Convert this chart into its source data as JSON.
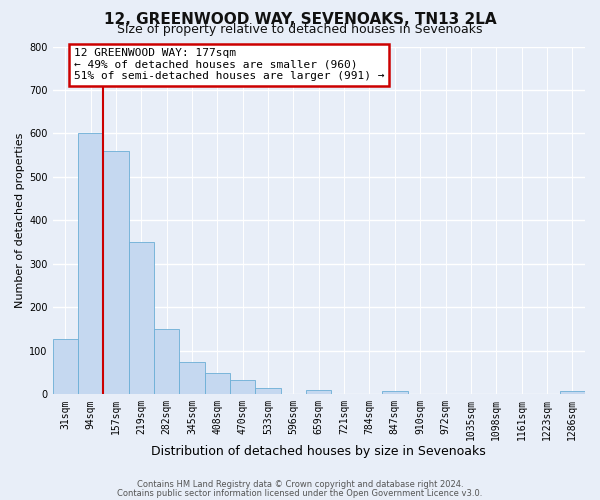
{
  "title": "12, GREENWOOD WAY, SEVENOAKS, TN13 2LA",
  "subtitle": "Size of property relative to detached houses in Sevenoaks",
  "xlabel": "Distribution of detached houses by size in Sevenoaks",
  "ylabel": "Number of detached properties",
  "bar_labels": [
    "31sqm",
    "94sqm",
    "157sqm",
    "219sqm",
    "282sqm",
    "345sqm",
    "408sqm",
    "470sqm",
    "533sqm",
    "596sqm",
    "659sqm",
    "721sqm",
    "784sqm",
    "847sqm",
    "910sqm",
    "972sqm",
    "1035sqm",
    "1098sqm",
    "1161sqm",
    "1223sqm",
    "1286sqm"
  ],
  "bar_heights": [
    128,
    600,
    560,
    350,
    150,
    75,
    50,
    33,
    15,
    0,
    10,
    0,
    0,
    8,
    0,
    0,
    0,
    0,
    0,
    0,
    8
  ],
  "bar_color": "#c5d8f0",
  "bar_edge_color": "#6baed6",
  "vline_color": "#cc0000",
  "ylim": [
    0,
    800
  ],
  "yticks": [
    0,
    100,
    200,
    300,
    400,
    500,
    600,
    700,
    800
  ],
  "annotation_title": "12 GREENWOOD WAY: 177sqm",
  "annotation_line1": "← 49% of detached houses are smaller (960)",
  "annotation_line2": "51% of semi-detached houses are larger (991) →",
  "annotation_box_color": "#cc0000",
  "background_color": "#e8eef8",
  "grid_color": "#ffffff",
  "footer1": "Contains HM Land Registry data © Crown copyright and database right 2024.",
  "footer2": "Contains public sector information licensed under the Open Government Licence v3.0.",
  "title_fontsize": 11,
  "subtitle_fontsize": 9,
  "tick_fontsize": 7,
  "ylabel_fontsize": 8,
  "xlabel_fontsize": 9
}
